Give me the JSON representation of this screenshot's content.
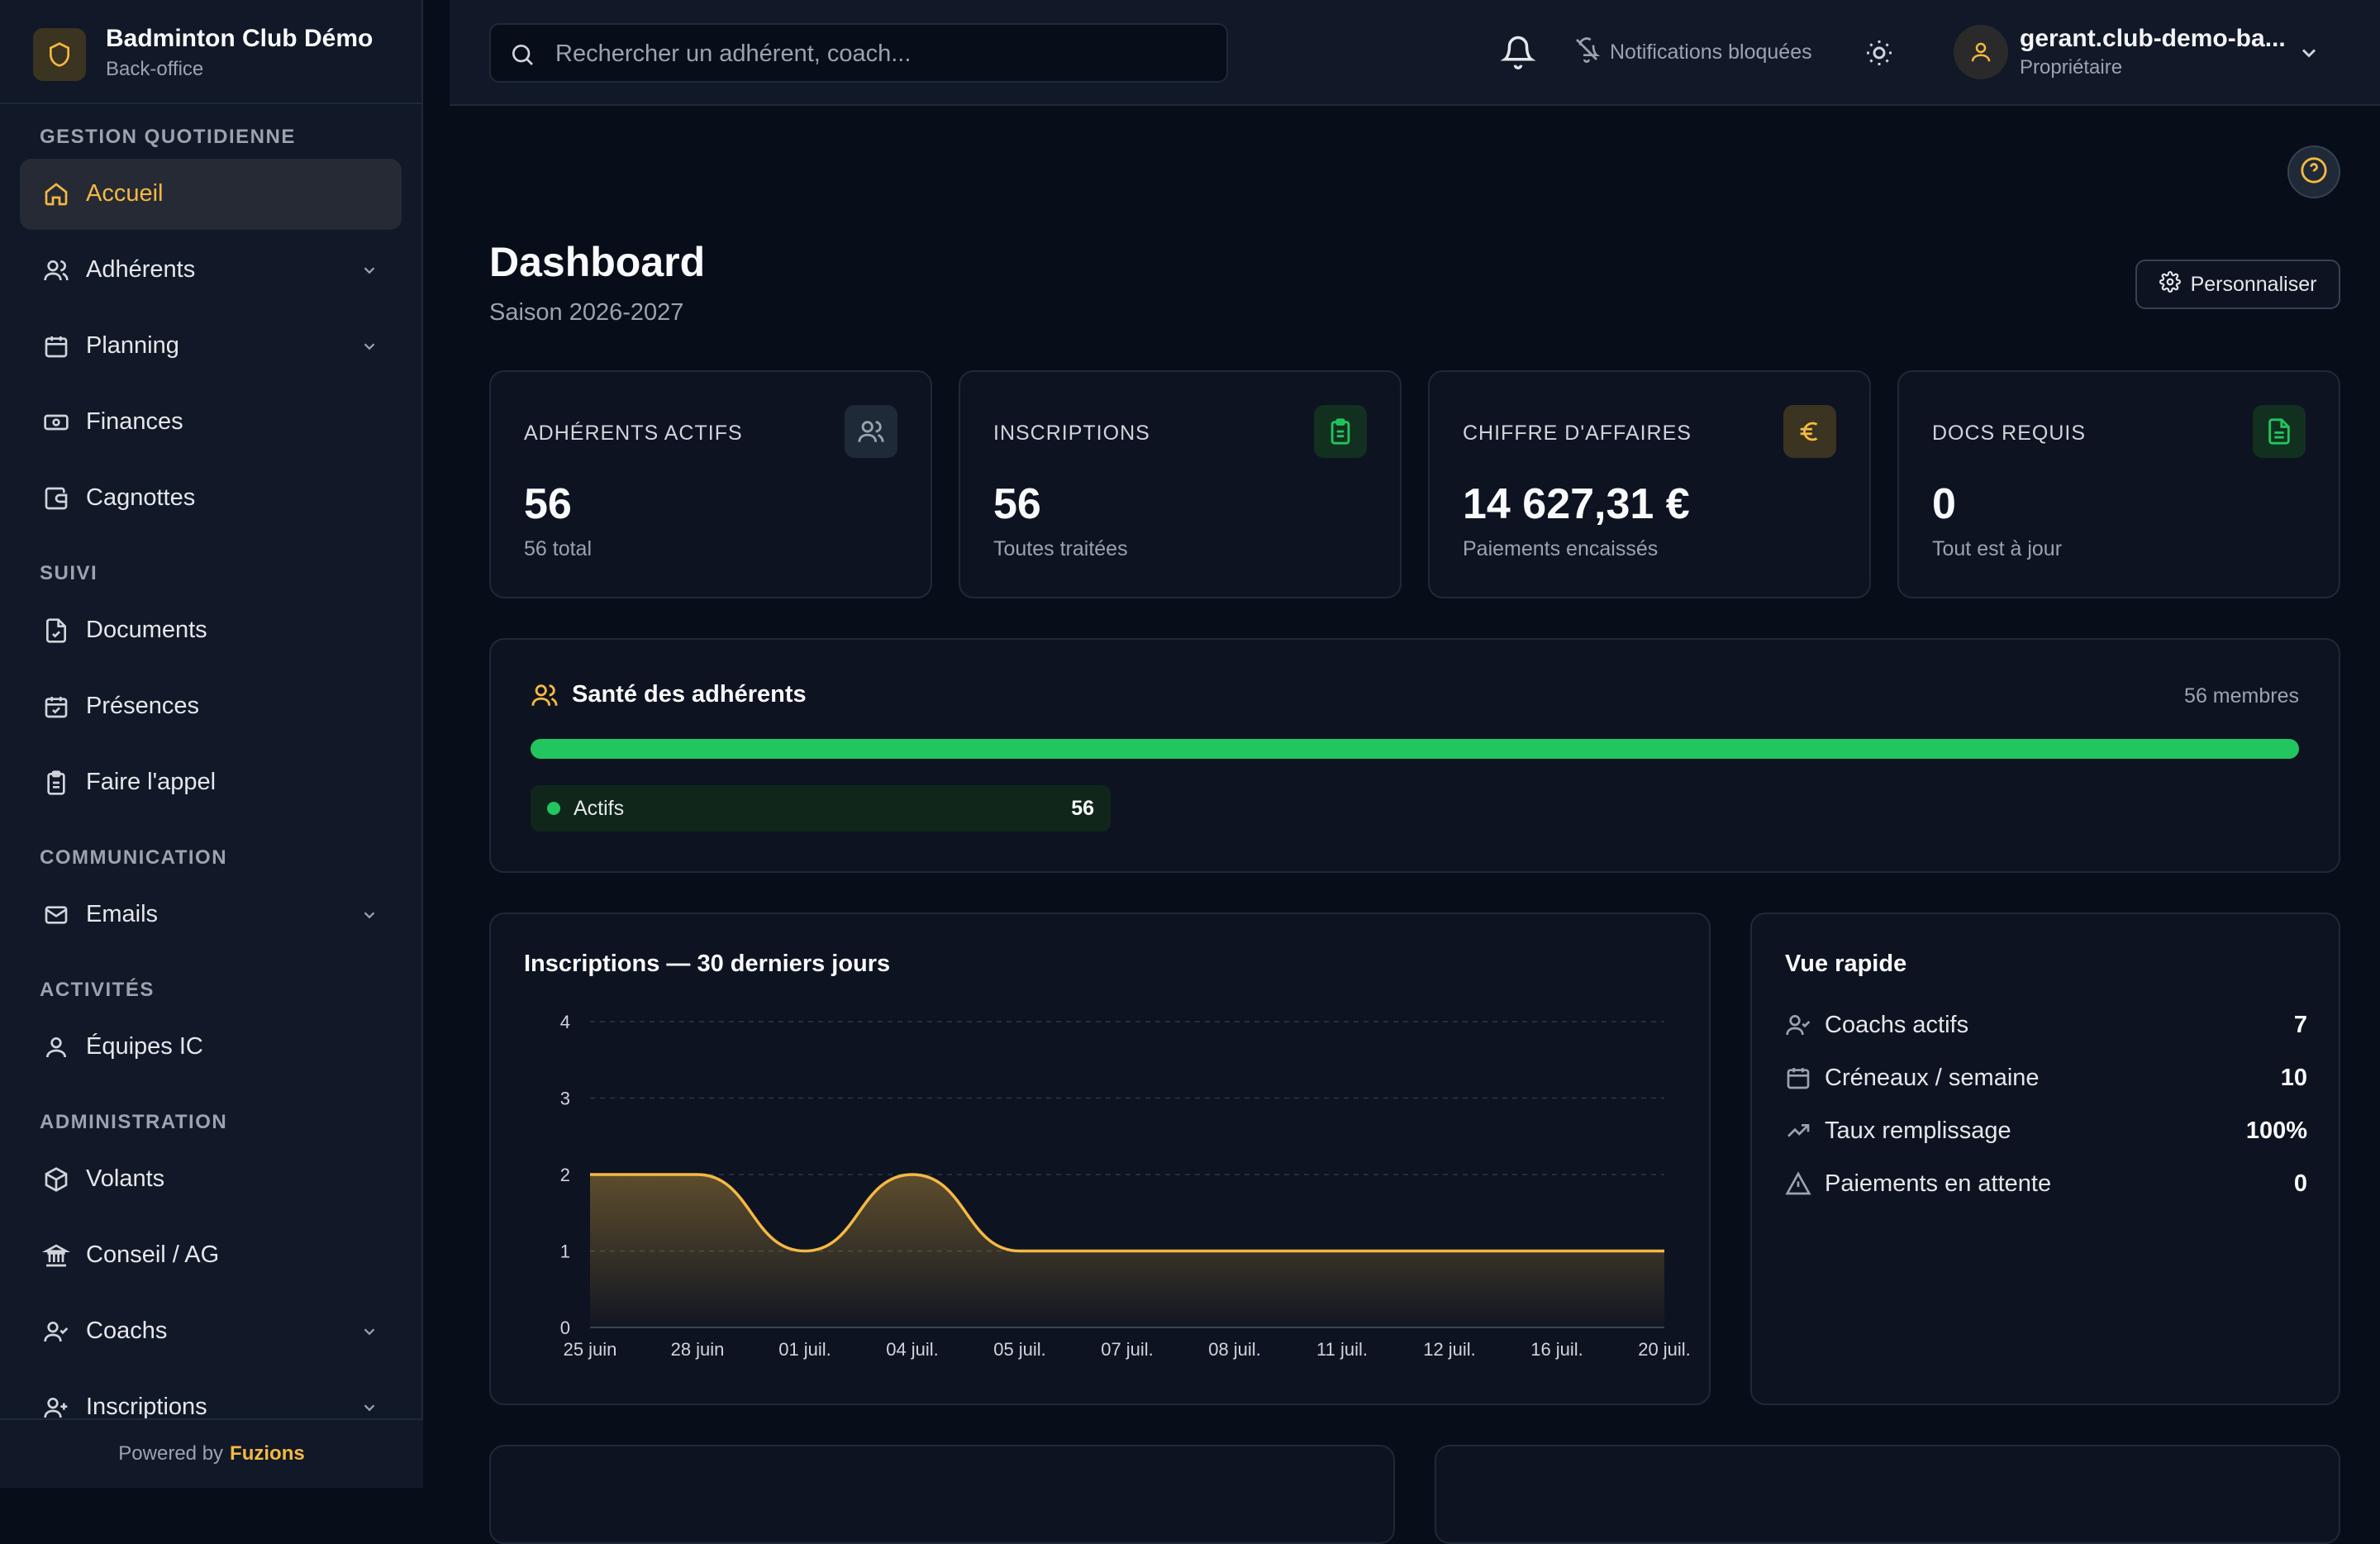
{
  "brand": {
    "name": "Badminton Club Démo",
    "subtitle": "Back-office"
  },
  "sidebar": {
    "sections": [
      {
        "label": "Gestion quotidienne"
      },
      {
        "label": "Suivi"
      },
      {
        "label": "Communication"
      },
      {
        "label": "Activités"
      },
      {
        "label": "Administration"
      }
    ],
    "items": [
      {
        "label": "Accueil",
        "icon": "home-icon"
      },
      {
        "label": "Adhérents",
        "icon": "users-icon"
      },
      {
        "label": "Planning",
        "icon": "calendar-icon"
      },
      {
        "label": "Finances",
        "icon": "banknote-icon"
      },
      {
        "label": "Cagnottes",
        "icon": "wallet-icon"
      },
      {
        "label": "Documents",
        "icon": "file-icon"
      },
      {
        "label": "Présences",
        "icon": "calendar-check-icon"
      },
      {
        "label": "Faire l'appel",
        "icon": "clipboard-icon"
      },
      {
        "label": "Emails",
        "icon": "mail-icon"
      },
      {
        "label": "Équipes IC",
        "icon": "user-icon"
      },
      {
        "label": "Volants",
        "icon": "package-icon"
      },
      {
        "label": "Conseil / AG",
        "icon": "landmark-icon"
      },
      {
        "label": "Coachs",
        "icon": "user-check-icon"
      },
      {
        "label": "Inscriptions",
        "icon": "user-plus-icon"
      }
    ],
    "footer": {
      "prefix": "Powered by",
      "brand": "Fuzions"
    }
  },
  "topbar": {
    "search_placeholder": "Rechercher un adhérent, coach...",
    "notifications_blocked": "Notifications bloquées",
    "user": {
      "name": "gerant.club-demo-ba...",
      "role": "Propriétaire"
    }
  },
  "page": {
    "title": "Dashboard",
    "subtitle": "Saison 2026-2027",
    "customize_label": "Personnaliser"
  },
  "stats": [
    {
      "label": "Adhérents actifs",
      "value": "56",
      "sub": "56 total",
      "icon": "users-icon",
      "accent": "#9ca3af"
    },
    {
      "label": "Inscriptions",
      "value": "56",
      "sub": "Toutes traitées",
      "icon": "clipboard-check-icon",
      "accent": "#22c55e"
    },
    {
      "label": "Chiffre d'affaires",
      "value": "14 627,31 €",
      "sub": "Paiements encaissés",
      "icon": "euro-icon",
      "accent": "#f5b942"
    },
    {
      "label": "Docs requis",
      "value": "0",
      "sub": "Tout est à jour",
      "icon": "file-text-icon",
      "accent": "#22c55e"
    }
  ],
  "health": {
    "title": "Santé des adhérents",
    "count": "56 membres",
    "active_fraction": 1.0,
    "chip": {
      "label": "Actifs",
      "value": "56"
    },
    "colors": {
      "bar": "#22c55e"
    }
  },
  "chart_data": {
    "type": "area",
    "title": "Inscriptions — 30 derniers jours",
    "categories": [
      "25 juin",
      "28 juin",
      "01 juil.",
      "04 juil.",
      "05 juil.",
      "07 juil.",
      "08 juil.",
      "11 juil.",
      "12 juil.",
      "16 juil.",
      "20 juil."
    ],
    "values": [
      2,
      2,
      1,
      2,
      1,
      1,
      1,
      1,
      1,
      1,
      1
    ],
    "ylim": [
      0,
      4
    ],
    "yticks": [
      0,
      1,
      2,
      3,
      4
    ],
    "grid": true,
    "color": "#f5b942"
  },
  "quick_view": {
    "title": "Vue rapide",
    "rows": [
      {
        "label": "Coachs actifs",
        "value": "7",
        "icon": "user-check-icon"
      },
      {
        "label": "Créneaux / semaine",
        "value": "10",
        "icon": "calendar-icon"
      },
      {
        "label": "Taux remplissage",
        "value": "100%",
        "icon": "trending-up-icon"
      },
      {
        "label": "Paiements en attente",
        "value": "0",
        "icon": "alert-triangle-icon"
      }
    ]
  }
}
